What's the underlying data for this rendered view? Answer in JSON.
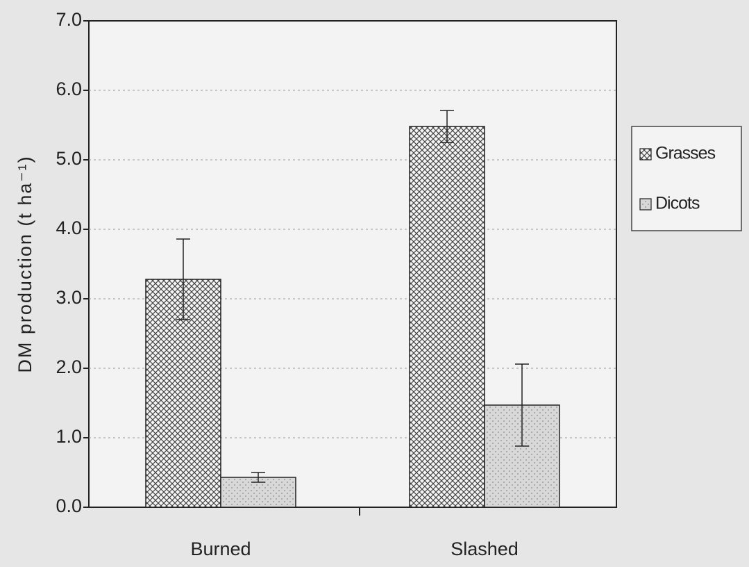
{
  "chart_data": {
    "type": "bar",
    "y_label": "DM production (t ha⁻¹)",
    "categories": [
      "Burned",
      "Slashed"
    ],
    "series": [
      {
        "name": "Grasses",
        "color": "#444444",
        "values": [
          3.28,
          5.48
        ],
        "errors": [
          0.58,
          0.23
        ]
      },
      {
        "name": "Dicots",
        "color": "#8a8a8a",
        "values": [
          0.43,
          1.47
        ],
        "errors": [
          0.07,
          0.59
        ]
      }
    ],
    "ylim": [
      0,
      7
    ],
    "yticks": [
      {
        "value": 0,
        "label": "0.0"
      },
      {
        "value": 1,
        "label": "1.0"
      },
      {
        "value": 2,
        "label": "2.0"
      },
      {
        "value": 3,
        "label": "3.0"
      },
      {
        "value": 4,
        "label": "4.0"
      },
      {
        "value": 5,
        "label": "5.0"
      },
      {
        "value": 6,
        "label": "6.0"
      },
      {
        "value": 7,
        "label": "7.0"
      }
    ],
    "grid": true,
    "legend": "right"
  }
}
